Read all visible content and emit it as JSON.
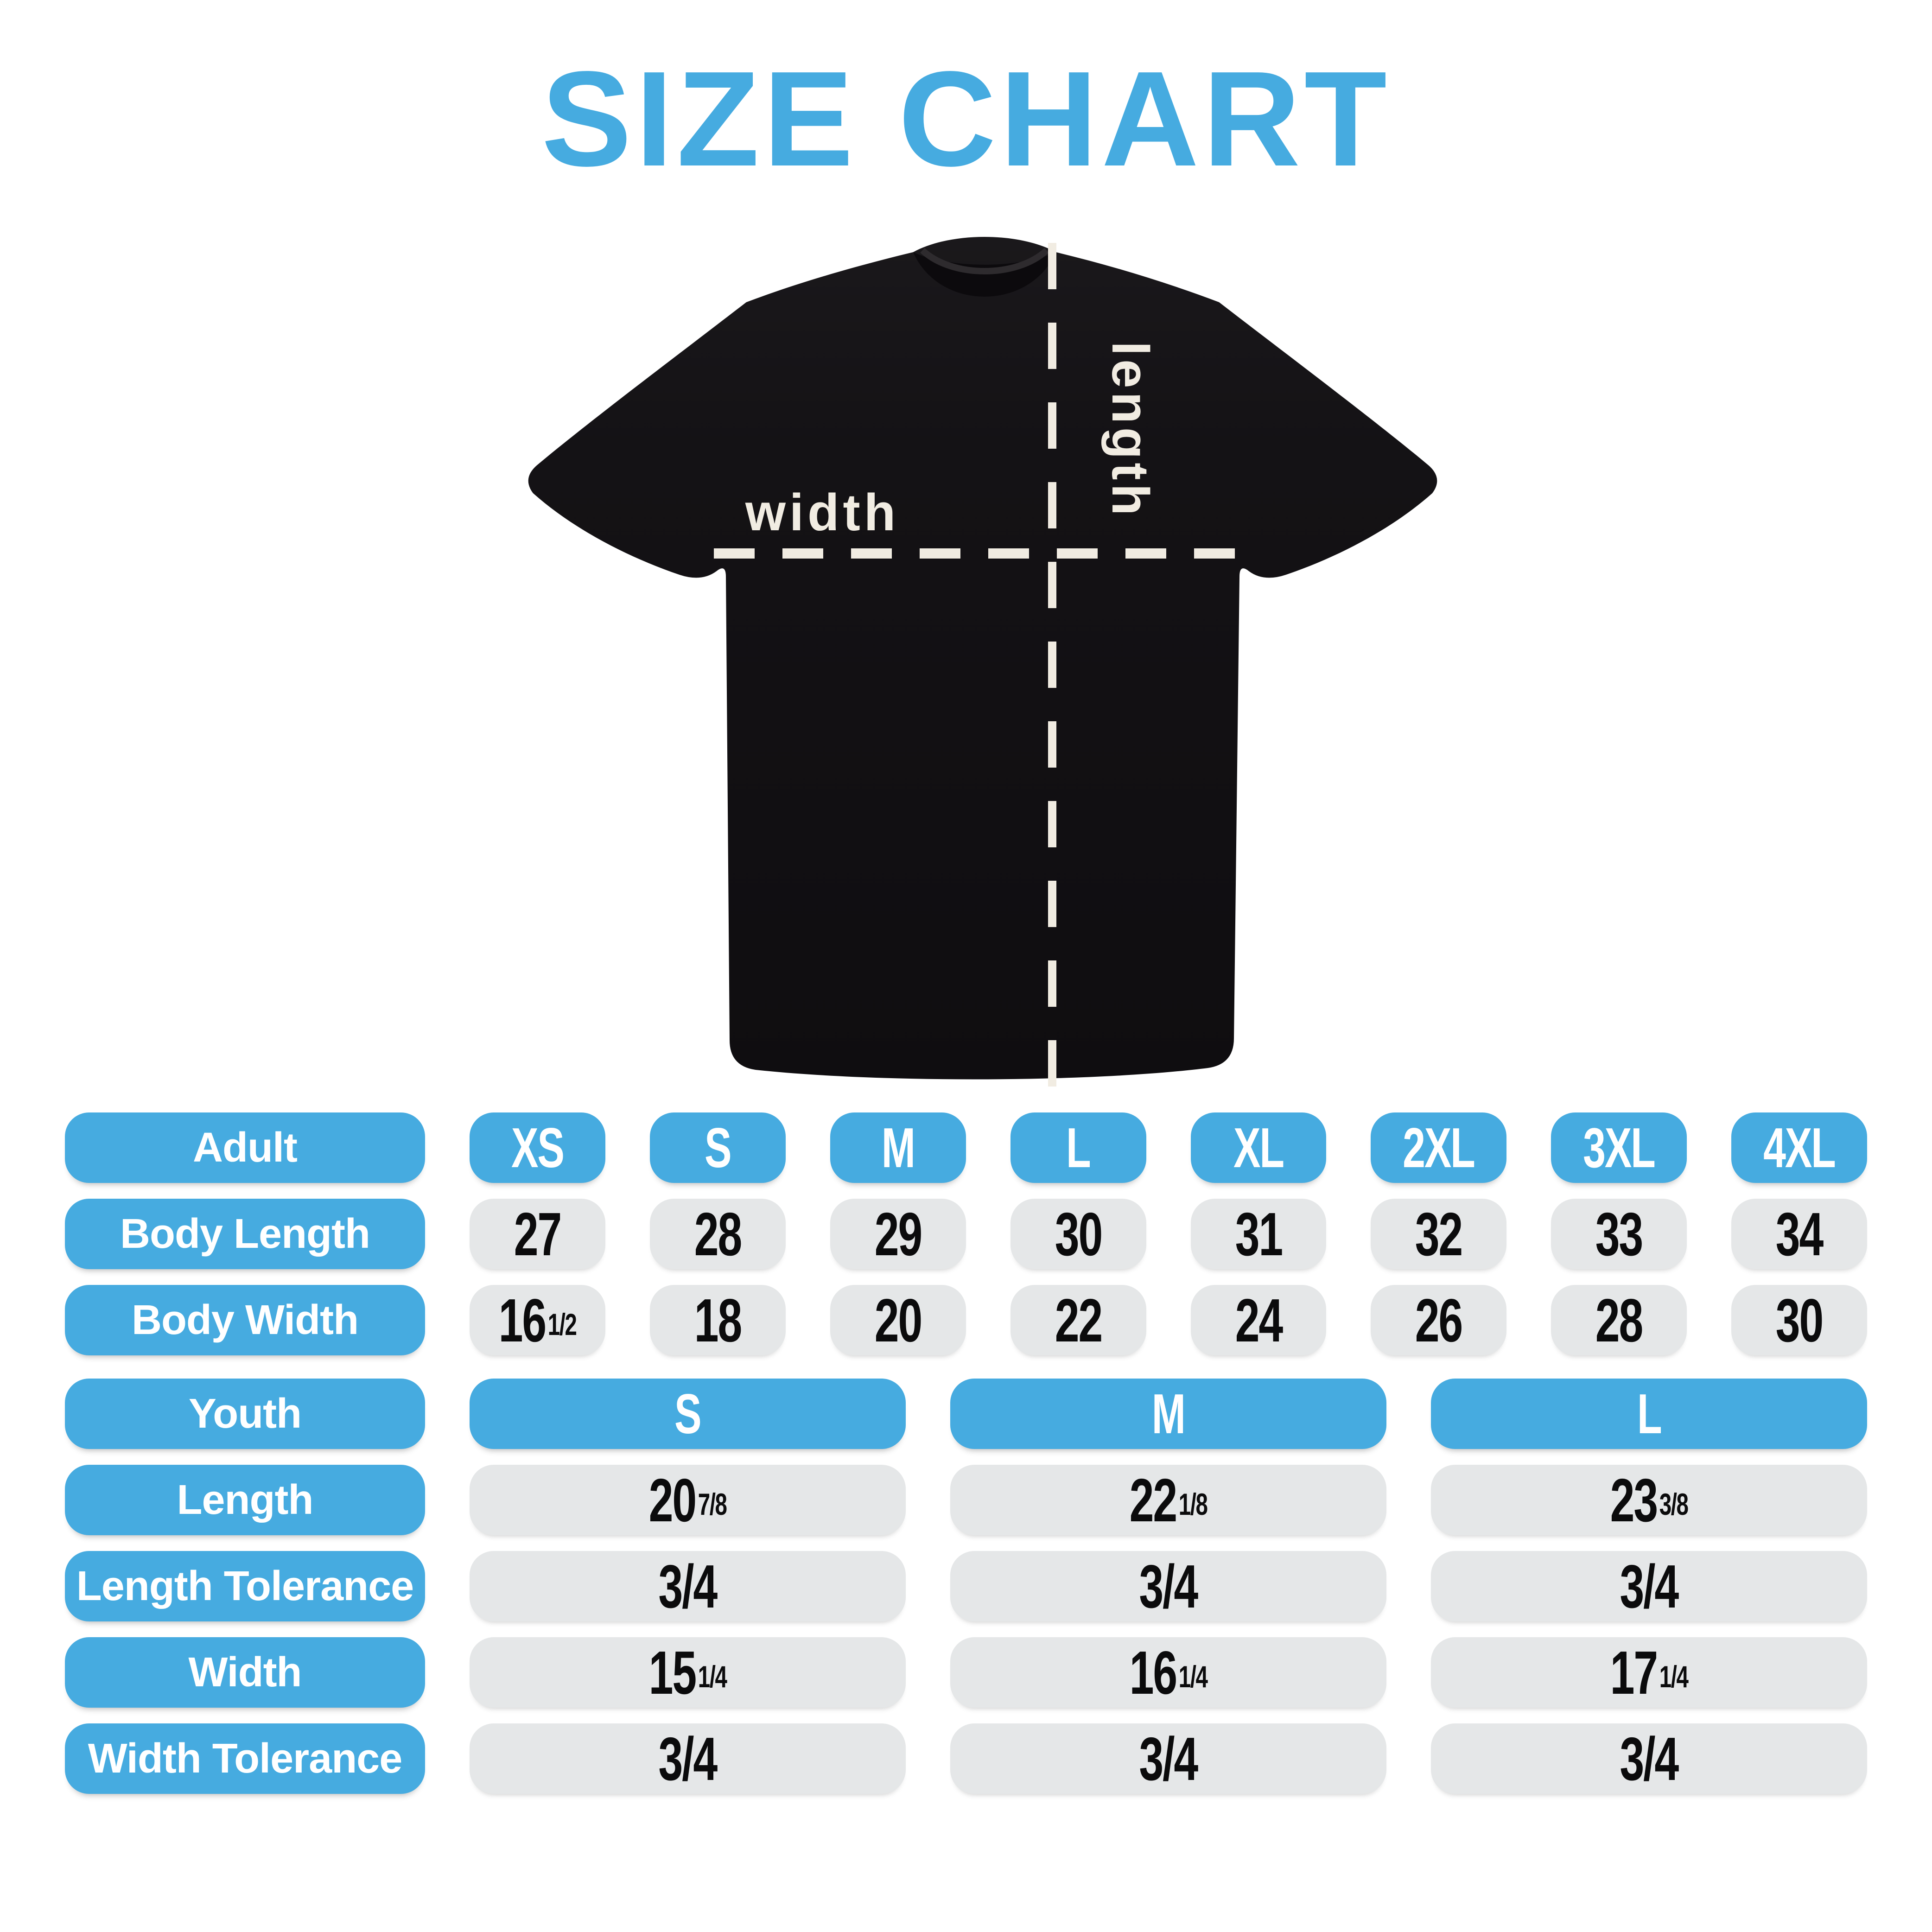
{
  "title": "SIZE CHART",
  "colors": {
    "accent": "#46ABE0",
    "cell_gray": "#E5E7E8",
    "cream": "#F1ECE2",
    "shirt_black": "#141215",
    "value_text": "#0b0b0c"
  },
  "diagram": {
    "width_label": "width",
    "length_label": "length"
  },
  "chart_data": [
    {
      "type": "table",
      "name": "adult-sizes",
      "columns": [
        "Adult",
        "XS",
        "S",
        "M",
        "L",
        "XL",
        "2XL",
        "3XL",
        "4XL"
      ],
      "rows": [
        [
          "Body Length",
          "27",
          "28",
          "29",
          "30",
          "31",
          "32",
          "33",
          "34"
        ],
        [
          "Body Width",
          "16 1/2",
          "18",
          "20",
          "22",
          "24",
          "26",
          "28",
          "30"
        ]
      ]
    },
    {
      "type": "table",
      "name": "youth-sizes",
      "columns": [
        "Youth",
        "S",
        "M",
        "L"
      ],
      "rows": [
        [
          "Length",
          "20 7/8",
          "22 1/8",
          "23 3/8"
        ],
        [
          "Length Tolerance",
          "3/4",
          "3/4",
          "3/4"
        ],
        [
          "Width",
          "15 1/4",
          "16 1/4",
          "17 1/4"
        ],
        [
          "Width Tolerance",
          "3/4",
          "3/4",
          "3/4"
        ]
      ]
    }
  ]
}
